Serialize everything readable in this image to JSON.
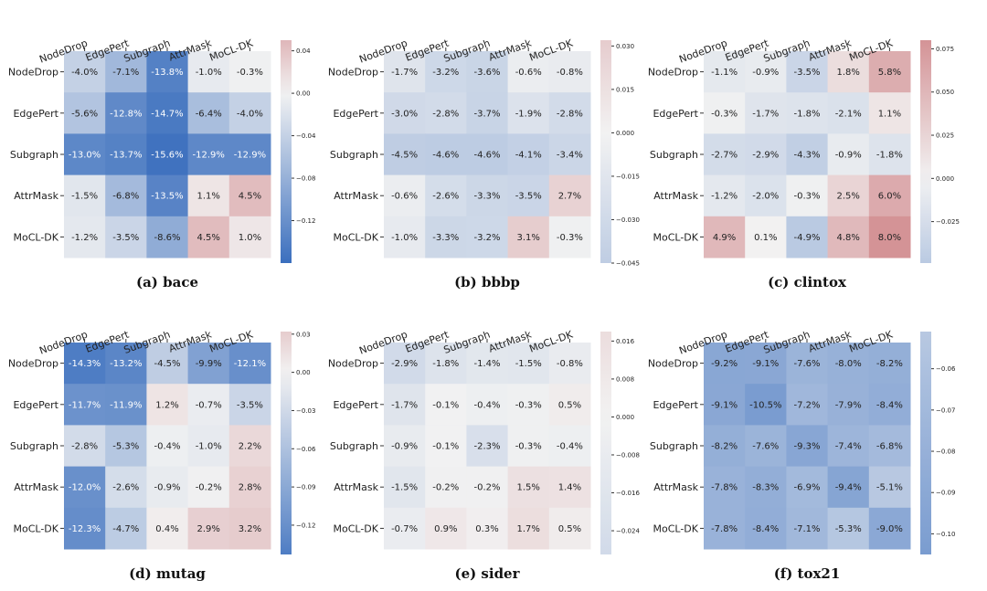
{
  "labels": [
    "NodeDrop",
    "EdgePert",
    "Subgraph",
    "AttrMask",
    "MoCL-DK"
  ],
  "colormap": {
    "neg": "#3b6fbe",
    "mid": "#f2f2f2",
    "pos": "#b6333a"
  },
  "chart_data": [
    {
      "type": "heatmap",
      "caption": "(a) bace",
      "rows": [
        "NodeDrop",
        "EdgePert",
        "Subgraph",
        "AttrMask",
        "MoCL-DK"
      ],
      "cols": [
        "NodeDrop",
        "EdgePert",
        "Subgraph",
        "AttrMask",
        "MoCL-DK"
      ],
      "values": [
        [
          -4.0,
          -7.1,
          -13.8,
          -1.0,
          -0.3
        ],
        [
          -5.6,
          -12.8,
          -14.7,
          -6.4,
          -4.0
        ],
        [
          -13.0,
          -13.7,
          -15.6,
          -12.9,
          -12.9
        ],
        [
          -1.5,
          -6.8,
          -13.5,
          1.1,
          4.5
        ],
        [
          -1.2,
          -3.5,
          -8.6,
          4.5,
          1.0
        ]
      ],
      "cell_labels": [
        [
          "-4.0%",
          "-7.1%",
          "-13.8%",
          "-1.0%",
          "-0.3%"
        ],
        [
          "-5.6%",
          "-12.8%",
          "-14.7%",
          "-6.4%",
          "-4.0%"
        ],
        [
          "-13.0%",
          "-13.7%",
          "-15.6%",
          "-12.9%",
          "-12.9%"
        ],
        [
          "-1.5%",
          "-6.8%",
          "-13.5%",
          "1.1%",
          "4.5%"
        ],
        [
          "-1.2%",
          "-3.5%",
          "-8.6%",
          "4.5%",
          "1.0%"
        ]
      ],
      "colorbar": {
        "min": -0.16,
        "max": 0.05,
        "ticks": [
          0.04,
          0.0,
          -0.04,
          -0.08,
          -0.12
        ],
        "tick_labels": [
          "0.04",
          "0.00",
          "−0.04",
          "−0.08",
          "−0.12"
        ]
      }
    },
    {
      "type": "heatmap",
      "caption": "(b) bbbp",
      "rows": [
        "NodeDrop",
        "EdgePert",
        "Subgraph",
        "AttrMask",
        "MoCL-DK"
      ],
      "cols": [
        "NodeDrop",
        "EdgePert",
        "Subgraph",
        "AttrMask",
        "MoCL-DK"
      ],
      "values": [
        [
          -1.7,
          -3.2,
          -3.6,
          -0.6,
          -0.8
        ],
        [
          -3.0,
          -2.8,
          -3.7,
          -1.9,
          -2.8
        ],
        [
          -4.5,
          -4.6,
          -4.6,
          -4.1,
          -3.4
        ],
        [
          -0.6,
          -2.6,
          -3.3,
          -3.5,
          2.7
        ],
        [
          -1.0,
          -3.3,
          -3.2,
          3.1,
          -0.3
        ]
      ],
      "cell_labels": [
        [
          "-1.7%",
          "-3.2%",
          "-3.6%",
          "-0.6%",
          "-0.8%"
        ],
        [
          "-3.0%",
          "-2.8%",
          "-3.7%",
          "-1.9%",
          "-2.8%"
        ],
        [
          "-4.5%",
          "-4.6%",
          "-4.6%",
          "-4.1%",
          "-3.4%"
        ],
        [
          "-0.6%",
          "-2.6%",
          "-3.3%",
          "-3.5%",
          "2.7%"
        ],
        [
          "-1.0%",
          "-3.3%",
          "-3.2%",
          "3.1%",
          "-0.3%"
        ]
      ],
      "colorbar": {
        "min": -0.045,
        "max": 0.032,
        "ticks": [
          0.03,
          0.015,
          0.0,
          -0.015,
          -0.03,
          -0.045
        ],
        "tick_labels": [
          "0.030",
          "0.015",
          "0.000",
          "−0.015",
          "−0.030",
          "−0.045"
        ]
      }
    },
    {
      "type": "heatmap",
      "caption": "(c) clintox",
      "rows": [
        "NodeDrop",
        "EdgePert",
        "Subgraph",
        "AttrMask",
        "MoCL-DK"
      ],
      "cols": [
        "NodeDrop",
        "EdgePert",
        "Subgraph",
        "AttrMask",
        "MoCL-DK"
      ],
      "values": [
        [
          -1.1,
          -0.9,
          -3.5,
          1.8,
          5.8
        ],
        [
          -0.3,
          -1.7,
          -1.8,
          -2.1,
          1.1
        ],
        [
          -2.7,
          -2.9,
          -4.3,
          -0.9,
          -1.8
        ],
        [
          -1.2,
          -2.0,
          -0.3,
          2.5,
          6.0
        ],
        [
          4.9,
          0.1,
          -4.9,
          4.8,
          8.0
        ]
      ],
      "cell_labels": [
        [
          "-1.1%",
          "-0.9%",
          "-3.5%",
          "1.8%",
          "5.8%"
        ],
        [
          "-0.3%",
          "-1.7%",
          "-1.8%",
          "-2.1%",
          "1.1%"
        ],
        [
          "-2.7%",
          "-2.9%",
          "-4.3%",
          "-0.9%",
          "-1.8%"
        ],
        [
          "-1.2%",
          "-2.0%",
          "-0.3%",
          "2.5%",
          "6.0%"
        ],
        [
          "4.9%",
          "0.1%",
          "-4.9%",
          "4.8%",
          "8.0%"
        ]
      ],
      "colorbar": {
        "min": -0.049,
        "max": 0.08,
        "ticks": [
          0.075,
          0.05,
          0.025,
          0.0,
          -0.025
        ],
        "tick_labels": [
          "0.075",
          "0.050",
          "0.025",
          "0.000",
          "−0.025"
        ]
      }
    },
    {
      "type": "heatmap",
      "caption": "(d) mutag",
      "rows": [
        "NodeDrop",
        "EdgePert",
        "Subgraph",
        "AttrMask",
        "MoCL-DK"
      ],
      "cols": [
        "NodeDrop",
        "EdgePert",
        "Subgraph",
        "AttrMask",
        "MoCL-DK"
      ],
      "values": [
        [
          -14.3,
          -13.2,
          -4.5,
          -9.9,
          -12.1
        ],
        [
          -11.7,
          -11.9,
          1.2,
          -0.7,
          -3.5
        ],
        [
          -2.8,
          -5.3,
          -0.4,
          -1.0,
          2.2
        ],
        [
          -12.0,
          -2.6,
          -0.9,
          -0.2,
          2.8
        ],
        [
          -12.3,
          -4.7,
          0.4,
          2.9,
          3.2
        ]
      ],
      "cell_labels": [
        [
          "-14.3%",
          "-13.2%",
          "-4.5%",
          "-9.9%",
          "-12.1%"
        ],
        [
          "-11.7%",
          "-11.9%",
          "1.2%",
          "-0.7%",
          "-3.5%"
        ],
        [
          "-2.8%",
          "-5.3%",
          "-0.4%",
          "-1.0%",
          "2.2%"
        ],
        [
          "-12.0%",
          "-2.6%",
          "-0.9%",
          "-0.2%",
          "2.8%"
        ],
        [
          "-12.3%",
          "-4.7%",
          "0.4%",
          "2.9%",
          "3.2%"
        ]
      ],
      "colorbar": {
        "min": -0.143,
        "max": 0.032,
        "ticks": [
          0.03,
          0.0,
          -0.03,
          -0.06,
          -0.09,
          -0.12
        ],
        "tick_labels": [
          "0.03",
          "0.00",
          "−0.03",
          "−0.06",
          "−0.09",
          "−0.12"
        ]
      }
    },
    {
      "type": "heatmap",
      "caption": "(e) sider",
      "rows": [
        "NodeDrop",
        "EdgePert",
        "Subgraph",
        "AttrMask",
        "MoCL-DK"
      ],
      "cols": [
        "NodeDrop",
        "EdgePert",
        "Subgraph",
        "AttrMask",
        "MoCL-DK"
      ],
      "values": [
        [
          -2.9,
          -1.8,
          -1.4,
          -1.5,
          -0.8
        ],
        [
          -1.7,
          -0.1,
          -0.4,
          -0.3,
          0.5
        ],
        [
          -0.9,
          -0.1,
          -2.3,
          -0.3,
          -0.4
        ],
        [
          -1.5,
          -0.2,
          -0.2,
          1.5,
          1.4
        ],
        [
          -0.7,
          0.9,
          0.3,
          1.7,
          0.5
        ]
      ],
      "cell_labels": [
        [
          "-2.9%",
          "-1.8%",
          "-1.4%",
          "-1.5%",
          "-0.8%"
        ],
        [
          "-1.7%",
          "-0.1%",
          "-0.4%",
          "-0.3%",
          "0.5%"
        ],
        [
          "-0.9%",
          "-0.1%",
          "-2.3%",
          "-0.3%",
          "-0.4%"
        ],
        [
          "-1.5%",
          "-0.2%",
          "-0.2%",
          "1.5%",
          "1.4%"
        ],
        [
          "-0.7%",
          "0.9%",
          "0.3%",
          "1.7%",
          "0.5%"
        ]
      ],
      "colorbar": {
        "min": -0.029,
        "max": 0.018,
        "ticks": [
          0.016,
          0.008,
          0.0,
          -0.008,
          -0.016,
          -0.024
        ],
        "tick_labels": [
          "0.016",
          "0.008",
          "0.000",
          "−0.008",
          "−0.016",
          "−0.024"
        ]
      }
    },
    {
      "type": "heatmap",
      "caption": "(f) tox21",
      "rows": [
        "NodeDrop",
        "EdgePert",
        "Subgraph",
        "AttrMask",
        "MoCL-DK"
      ],
      "cols": [
        "NodeDrop",
        "EdgePert",
        "Subgraph",
        "AttrMask",
        "MoCL-DK"
      ],
      "values": [
        [
          -9.2,
          -9.1,
          -7.6,
          -8.0,
          -8.2
        ],
        [
          -9.1,
          -10.5,
          -7.2,
          -7.9,
          -8.4
        ],
        [
          -8.2,
          -7.6,
          -9.3,
          -7.4,
          -6.8
        ],
        [
          -7.8,
          -8.3,
          -6.9,
          -9.4,
          -5.1
        ],
        [
          -7.8,
          -8.4,
          -7.1,
          -5.3,
          -9.0
        ]
      ],
      "cell_labels": [
        [
          "-9.2%",
          "-9.1%",
          "-7.6%",
          "-8.0%",
          "-8.2%"
        ],
        [
          "-9.1%",
          "-10.5%",
          "-7.2%",
          "-7.9%",
          "-8.4%"
        ],
        [
          "-8.2%",
          "-7.6%",
          "-9.3%",
          "-7.4%",
          "-6.8%"
        ],
        [
          "-7.8%",
          "-8.3%",
          "-6.9%",
          "-9.4%",
          "-5.1%"
        ],
        [
          "-7.8%",
          "-8.4%",
          "-7.1%",
          "-5.3%",
          "-9.0%"
        ]
      ],
      "colorbar": {
        "min": -0.105,
        "max": -0.051,
        "ticks": [
          -0.06,
          -0.07,
          -0.08,
          -0.09,
          -0.1
        ],
        "tick_labels": [
          "−0.06",
          "−0.07",
          "−0.08",
          "−0.09",
          "−0.10"
        ]
      }
    }
  ]
}
